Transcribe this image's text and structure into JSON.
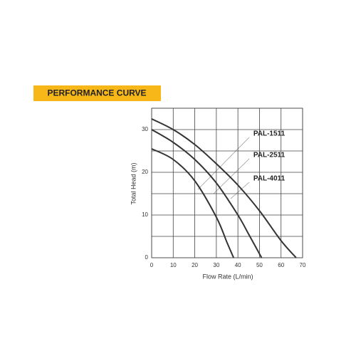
{
  "chart_data": {
    "type": "line",
    "title": "PERFORMANCE CURVE",
    "x_label": "Flow Rate (L/min)",
    "y_label": "Total Head (m)",
    "xlim": [
      0,
      70
    ],
    "ylim": [
      0,
      35
    ],
    "xticks": [
      0,
      10,
      20,
      30,
      40,
      50,
      60,
      70
    ],
    "yticks": [
      0,
      10,
      20,
      30
    ],
    "y_minor_ticks": [
      5,
      15,
      25,
      35
    ],
    "grid": true,
    "series": [
      {
        "name": "PAL-1511",
        "color": "#333333",
        "x": [
          0,
          10,
          20,
          30,
          35,
          38
        ],
        "values": [
          25.5,
          23,
          18,
          9.5,
          3.5,
          0
        ]
      },
      {
        "name": "PAL-2511",
        "color": "#333333",
        "x": [
          0,
          10,
          20,
          30,
          40,
          45,
          51
        ],
        "values": [
          30,
          27,
          23,
          17.5,
          10,
          5.5,
          0
        ]
      },
      {
        "name": "PAL-4011",
        "color": "#333333",
        "x": [
          0,
          10,
          20,
          30,
          40,
          50,
          60,
          67
        ],
        "values": [
          32.5,
          30,
          26.5,
          22,
          17,
          11,
          4,
          0
        ]
      }
    ]
  }
}
